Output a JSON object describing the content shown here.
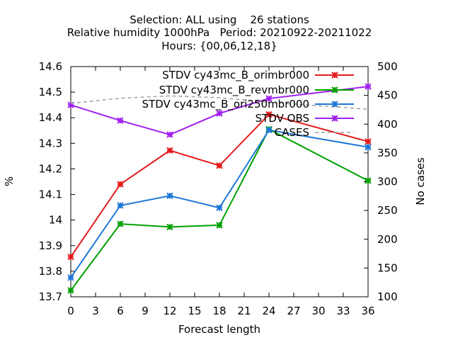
{
  "chart_data": {
    "type": "line",
    "title_lines": [
      "Selection: ALL using    26 stations",
      "Relative humidity 1000hPa   Period: 20210922-20211022",
      "Hours: {00,06,12,18}"
    ],
    "xlabel": "Forecast length",
    "ylabel": "%",
    "y2label": "No cases",
    "xlim": [
      0,
      36
    ],
    "ylim": [
      13.7,
      14.6
    ],
    "y2lim": [
      100,
      500
    ],
    "xticks": [
      "0",
      "3",
      "6",
      "9",
      "12",
      "15",
      "18",
      "21",
      "24",
      "27",
      "30",
      "33",
      "36"
    ],
    "yticks": [
      "13.7",
      "13.8",
      "13.9",
      "14",
      "14.1",
      "14.2",
      "14.3",
      "14.4",
      "14.5",
      "14.6"
    ],
    "y2ticks": [
      "100",
      "150",
      "200",
      "250",
      "300",
      "350",
      "400",
      "450",
      "500"
    ],
    "x": [
      0,
      6,
      12,
      18,
      24,
      36
    ],
    "series": [
      {
        "name": "STDV cy43mc_B_orimbr000",
        "color": "#e41a1c",
        "axis": "y",
        "values": [
          13.856,
          14.14,
          14.272,
          14.213,
          14.413,
          14.307
        ]
      },
      {
        "name": "STDV cy43mc_B_revmbr000",
        "color": "#00a000",
        "axis": "y",
        "values": [
          13.725,
          13.985,
          13.973,
          13.98,
          14.355,
          14.154
        ]
      },
      {
        "name": "STDV cy43mc_B_ori250mbr000",
        "color": "#1e78d7",
        "axis": "y",
        "values": [
          13.775,
          14.057,
          14.095,
          14.048,
          14.352,
          14.285
        ]
      },
      {
        "name": "STDV OBS",
        "color": "#a020f0",
        "axis": "y",
        "values": [
          14.45,
          14.389,
          14.334,
          14.417,
          14.475,
          14.522
        ]
      },
      {
        "name": "CASES",
        "color": "#a0a0a0",
        "axis": "y2",
        "dashed": true,
        "values": [
          436,
          445,
          449,
          446,
          438,
          426
        ]
      }
    ],
    "grid": false,
    "legend_position": "top-right"
  }
}
